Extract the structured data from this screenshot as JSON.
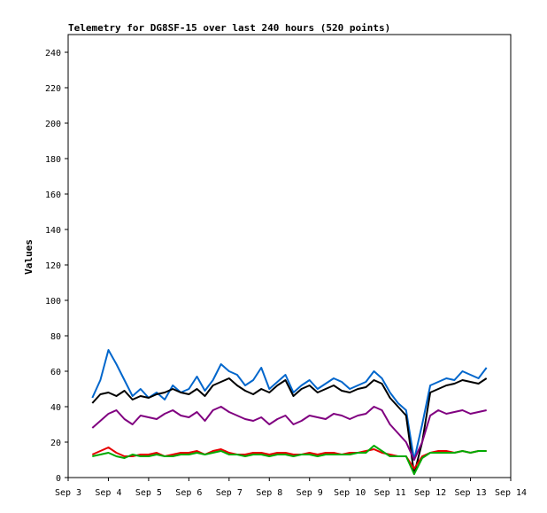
{
  "chart_data": {
    "type": "line",
    "title": "Telemetry for DG8SF-15 over last 240 hours (520 points)",
    "xlabel": "",
    "ylabel": "Values",
    "xlim": [
      "Sep 3",
      "Sep 14"
    ],
    "ylim": [
      0,
      250
    ],
    "x_ticks": [
      "Sep 3",
      "Sep 4",
      "Sep 5",
      "Sep 6",
      "Sep 7",
      "Sep 8",
      "Sep 9",
      "Sep 10",
      "Sep 11",
      "Sep 12",
      "Sep 13",
      "Sep 14"
    ],
    "y_ticks": [
      0,
      20,
      40,
      60,
      80,
      100,
      120,
      140,
      160,
      180,
      200,
      220,
      240
    ],
    "grid": false,
    "legend": "none",
    "x": [
      "Sep 3.6",
      "Sep 3.8",
      "Sep 4.0",
      "Sep 4.2",
      "Sep 4.4",
      "Sep 4.6",
      "Sep 4.8",
      "Sep 5.0",
      "Sep 5.2",
      "Sep 5.4",
      "Sep 5.6",
      "Sep 5.8",
      "Sep 6.0",
      "Sep 6.2",
      "Sep 6.4",
      "Sep 6.6",
      "Sep 6.8",
      "Sep 7.0",
      "Sep 7.2",
      "Sep 7.4",
      "Sep 7.6",
      "Sep 7.8",
      "Sep 8.0",
      "Sep 8.2",
      "Sep 8.4",
      "Sep 8.6",
      "Sep 8.8",
      "Sep 9.0",
      "Sep 9.2",
      "Sep 9.4",
      "Sep 9.6",
      "Sep 9.8",
      "Sep 10.0",
      "Sep 10.2",
      "Sep 10.4",
      "Sep 10.6",
      "Sep 10.8",
      "Sep 11.0",
      "Sep 11.2",
      "Sep 11.4",
      "Sep 11.6",
      "Sep 11.8",
      "Sep 12.0",
      "Sep 12.2",
      "Sep 12.4",
      "Sep 12.6",
      "Sep 12.8",
      "Sep 13.0",
      "Sep 13.2",
      "Sep 13.4"
    ],
    "series": [
      {
        "color": "#0066cc",
        "values": [
          45,
          55,
          72,
          64,
          55,
          46,
          50,
          45,
          48,
          44,
          52,
          48,
          50,
          57,
          49,
          55,
          64,
          60,
          58,
          52,
          55,
          62,
          50,
          54,
          58,
          48,
          52,
          55,
          50,
          53,
          56,
          54,
          50,
          52,
          54,
          60,
          56,
          48,
          42,
          38,
          10,
          30,
          52,
          54,
          56,
          55,
          60,
          58,
          56,
          62
        ]
      },
      {
        "color": "#000000",
        "values": [
          42,
          47,
          48,
          46,
          49,
          44,
          46,
          45,
          47,
          48,
          50,
          48,
          47,
          50,
          46,
          52,
          54,
          56,
          52,
          49,
          47,
          50,
          48,
          52,
          55,
          46,
          50,
          52,
          48,
          50,
          52,
          49,
          48,
          50,
          51,
          55,
          53,
          45,
          40,
          35,
          2,
          20,
          48,
          50,
          52,
          53,
          55,
          54,
          53,
          56
        ]
      },
      {
        "color": "#800080",
        "values": [
          28,
          32,
          36,
          38,
          33,
          30,
          35,
          34,
          33,
          36,
          38,
          35,
          34,
          37,
          32,
          38,
          40,
          37,
          35,
          33,
          32,
          34,
          30,
          33,
          35,
          30,
          32,
          35,
          34,
          33,
          36,
          35,
          33,
          35,
          36,
          40,
          38,
          30,
          25,
          20,
          10,
          20,
          35,
          38,
          36,
          37,
          38,
          36,
          37,
          38
        ]
      },
      {
        "color": "#e60000",
        "values": [
          13,
          15,
          17,
          14,
          12,
          12,
          13,
          13,
          14,
          12,
          13,
          14,
          14,
          15,
          13,
          15,
          16,
          14,
          13,
          13,
          14,
          14,
          13,
          14,
          14,
          13,
          13,
          14,
          13,
          14,
          14,
          13,
          14,
          14,
          15,
          16,
          14,
          13,
          12,
          12,
          5,
          12,
          14,
          15,
          15,
          14,
          15,
          14,
          15,
          15
        ]
      },
      {
        "color": "#00aa00",
        "values": [
          12,
          13,
          14,
          12,
          11,
          13,
          12,
          12,
          13,
          12,
          12,
          13,
          13,
          14,
          13,
          14,
          15,
          13,
          13,
          12,
          13,
          13,
          12,
          13,
          13,
          12,
          13,
          13,
          12,
          13,
          13,
          13,
          13,
          14,
          14,
          18,
          15,
          12,
          12,
          12,
          2,
          11,
          14,
          14,
          14,
          14,
          15,
          14,
          15,
          15
        ]
      }
    ]
  }
}
